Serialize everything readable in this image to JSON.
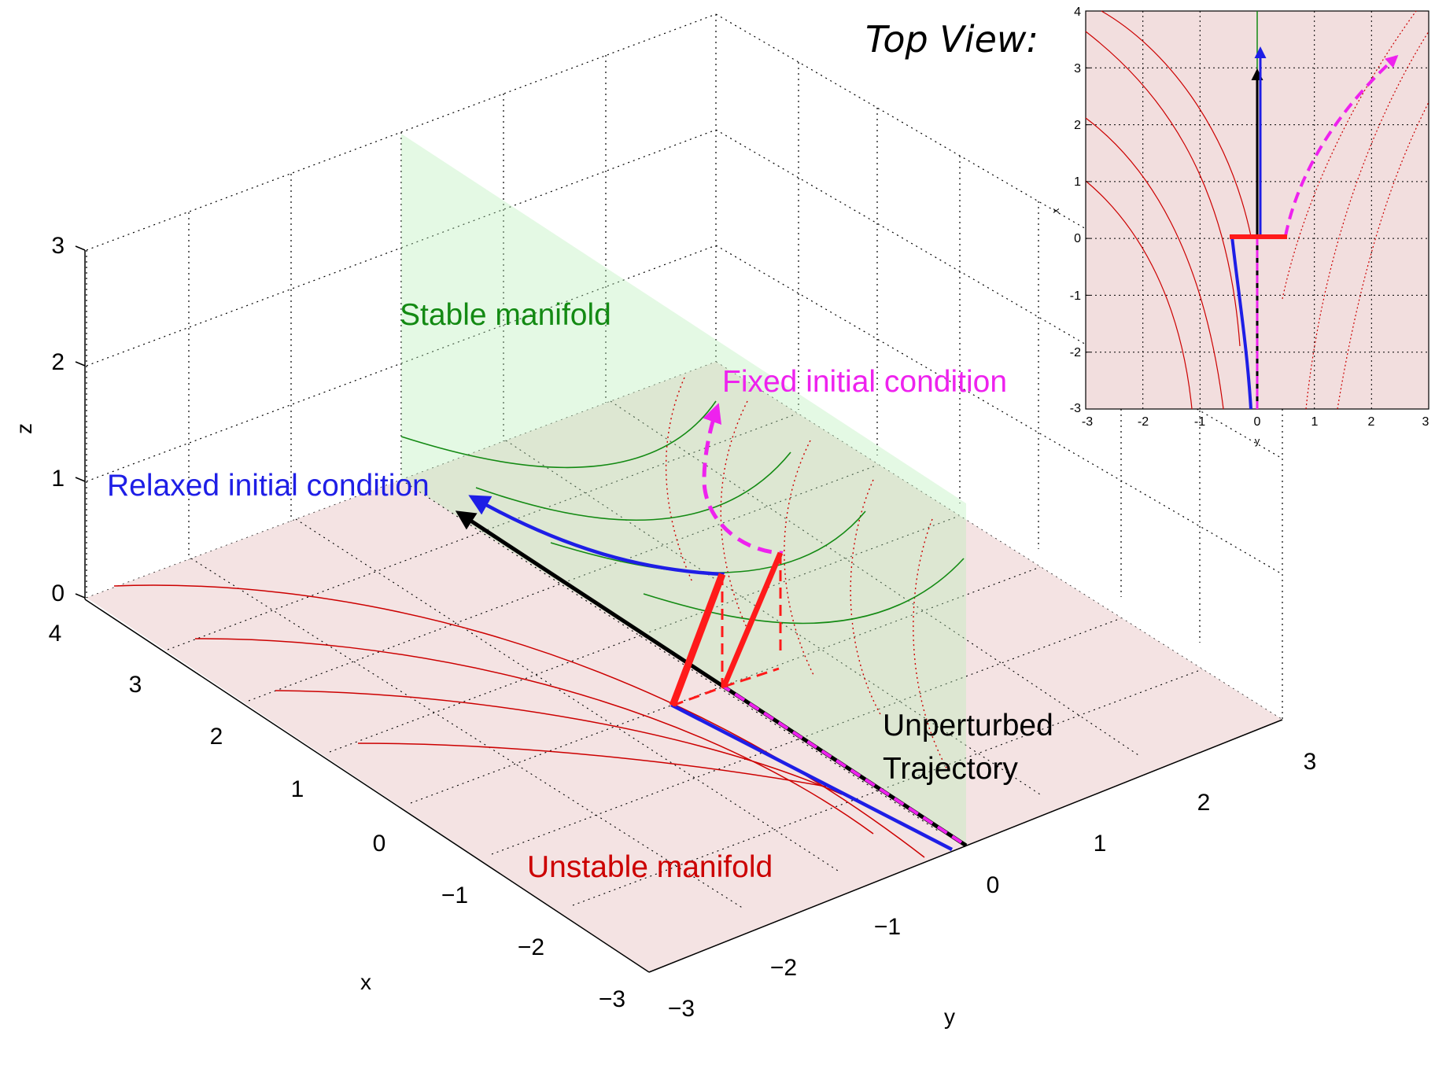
{
  "main_plot": {
    "axis_labels": {
      "x": "x",
      "y": "y",
      "z": "z"
    },
    "x_ticks": [
      "4",
      "3",
      "2",
      "1",
      "0",
      "−1",
      "−2",
      "−3"
    ],
    "y_ticks": [
      "−3",
      "−2",
      "−1",
      "0",
      "1",
      "2",
      "3"
    ],
    "z_ticks": [
      "0",
      "1",
      "2",
      "3"
    ],
    "labels": {
      "stable_manifold": "Stable manifold",
      "fixed_initial_condition": "Fixed initial condition",
      "relaxed_initial_condition": "Relaxed initial condition",
      "unperturbed_line1": "Unperturbed",
      "unperturbed_line2": "Trajectory",
      "unstable_manifold": "Unstable manifold"
    },
    "colors": {
      "stable": "#138a13",
      "stable_plane": "#b9efb9",
      "unstable": "#cc0000",
      "floor": "#f2dede",
      "relaxed": "#1e1ee6",
      "fixed": "#ee22ee",
      "unperturbed": "#000000",
      "perturbation": "#ff1a1a"
    }
  },
  "inset": {
    "title": "Top View:",
    "axis_labels": {
      "x": "x",
      "y": "y"
    },
    "x_ticks": [
      "4",
      "3",
      "2",
      "1",
      "0",
      "-1",
      "-2",
      "-3"
    ],
    "y_ticks": [
      "-3",
      "-2",
      "-1",
      "0",
      "1",
      "2",
      "3"
    ],
    "xlim": [
      -3,
      4
    ],
    "ylim": [
      -3,
      3
    ]
  }
}
